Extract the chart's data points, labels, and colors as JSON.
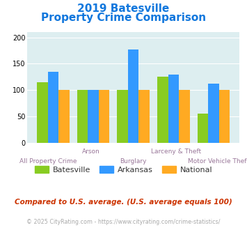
{
  "title_line1": "2019 Batesville",
  "title_line2": "Property Crime Comparison",
  "categories": [
    "All Property Crime",
    "Arson",
    "Burglary",
    "Larceny & Theft",
    "Motor Vehicle Theft"
  ],
  "batesville": [
    115,
    100,
    100,
    125,
    55
  ],
  "arkansas": [
    135,
    100,
    177,
    129,
    112
  ],
  "national": [
    100,
    100,
    100,
    100,
    100
  ],
  "color_batesville": "#88cc22",
  "color_arkansas": "#3399ff",
  "color_national": "#ffaa22",
  "ylim": [
    0,
    210
  ],
  "yticks": [
    0,
    50,
    100,
    150,
    200
  ],
  "plot_background": "#ddeef0",
  "title_color": "#1177dd",
  "xlabel_color_lower": "#997799",
  "xlabel_color_upper": "#997799",
  "note_text": "Compared to U.S. average. (U.S. average equals 100)",
  "note_color": "#cc3300",
  "footer_text": "© 2025 CityRating.com - https://www.cityrating.com/crime-statistics/",
  "footer_color": "#aaaaaa",
  "legend_labels": [
    "Batesville",
    "Arkansas",
    "National"
  ],
  "legend_text_color": "#333333"
}
